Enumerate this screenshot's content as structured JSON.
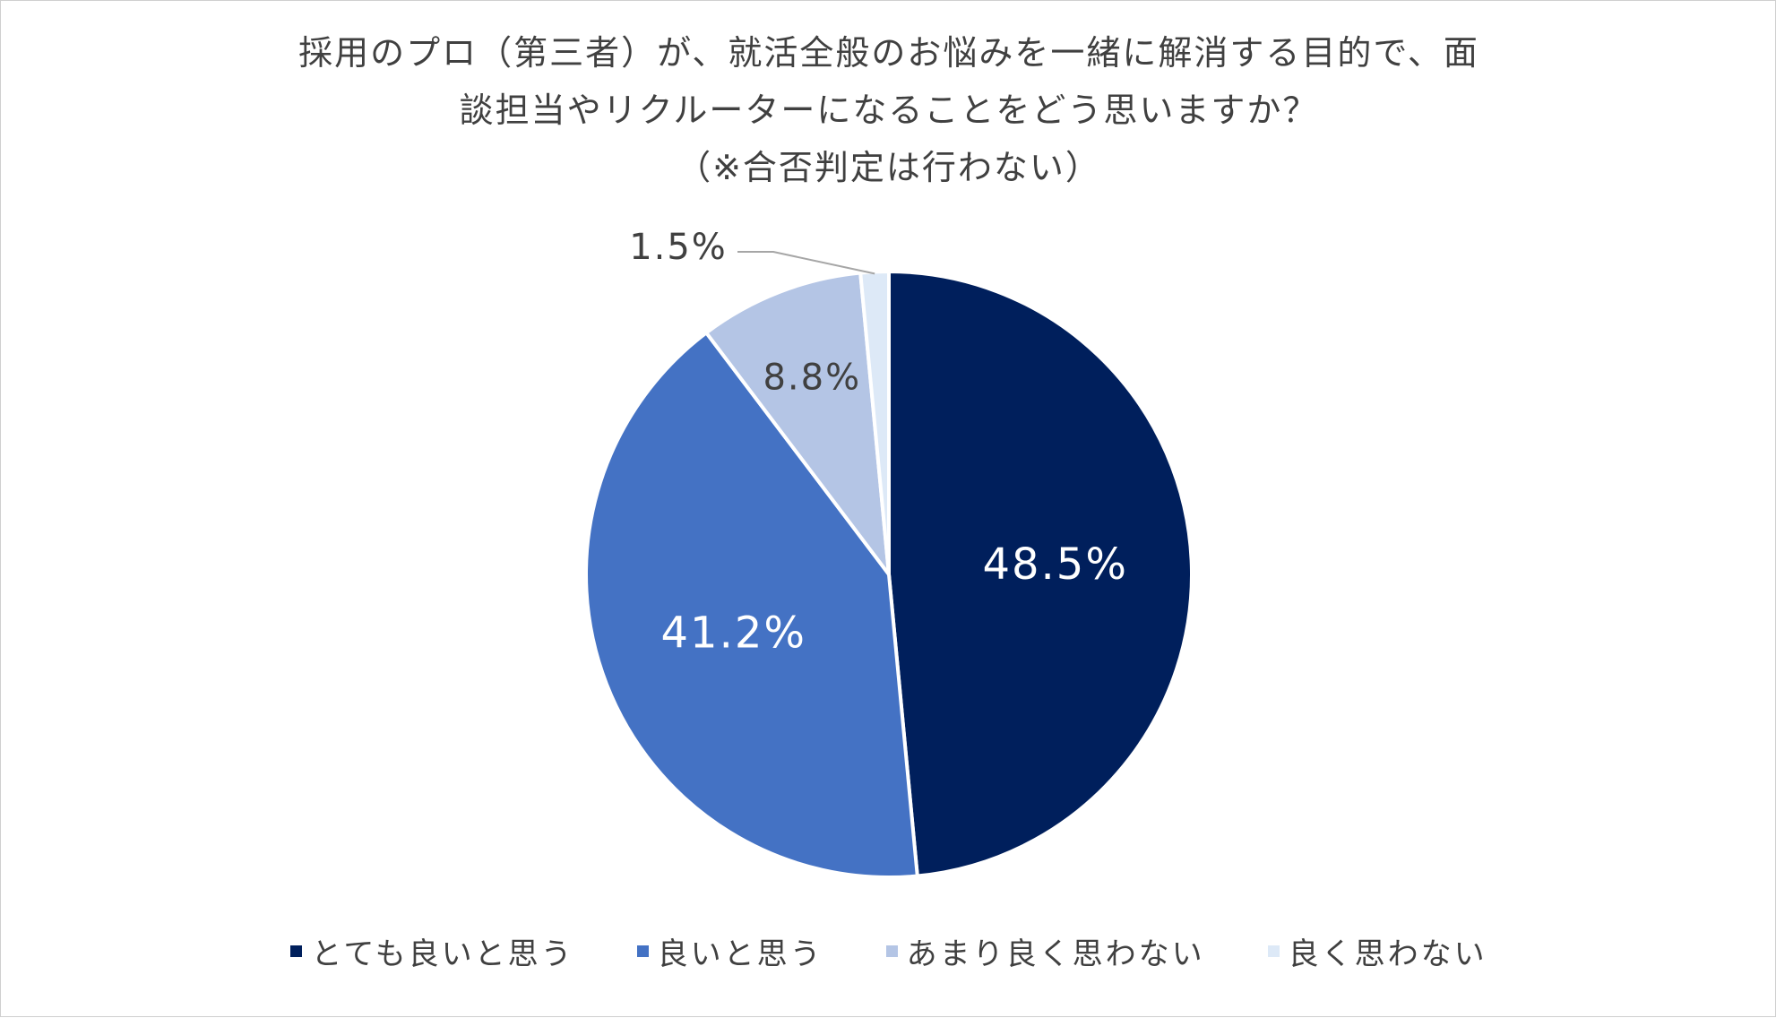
{
  "chart_data": {
    "type": "pie",
    "title_lines": [
      "採用のプロ（第三者）が、就活全般のお悩みを一緒に解消する目的で、面",
      "談担当やリクルーターになることをどう思いますか？",
      "（※合否判定は行わない）"
    ],
    "categories": [
      "とても良いと思う",
      "良いと思う",
      "あまり良く思わない",
      "良く思わない"
    ],
    "values": [
      48.5,
      41.2,
      8.8,
      1.5
    ],
    "data_labels": [
      "48.5%",
      "41.2%",
      "8.8%",
      "1.5%"
    ],
    "colors": [
      "#001f5c",
      "#4472c4",
      "#b4c5e5",
      "#dde9f7"
    ],
    "label_colors": [
      "#ffffff",
      "#ffffff",
      "#404040",
      "#404040"
    ],
    "start_angle_deg": 0,
    "direction": "clockwise",
    "legend_position": "bottom"
  }
}
